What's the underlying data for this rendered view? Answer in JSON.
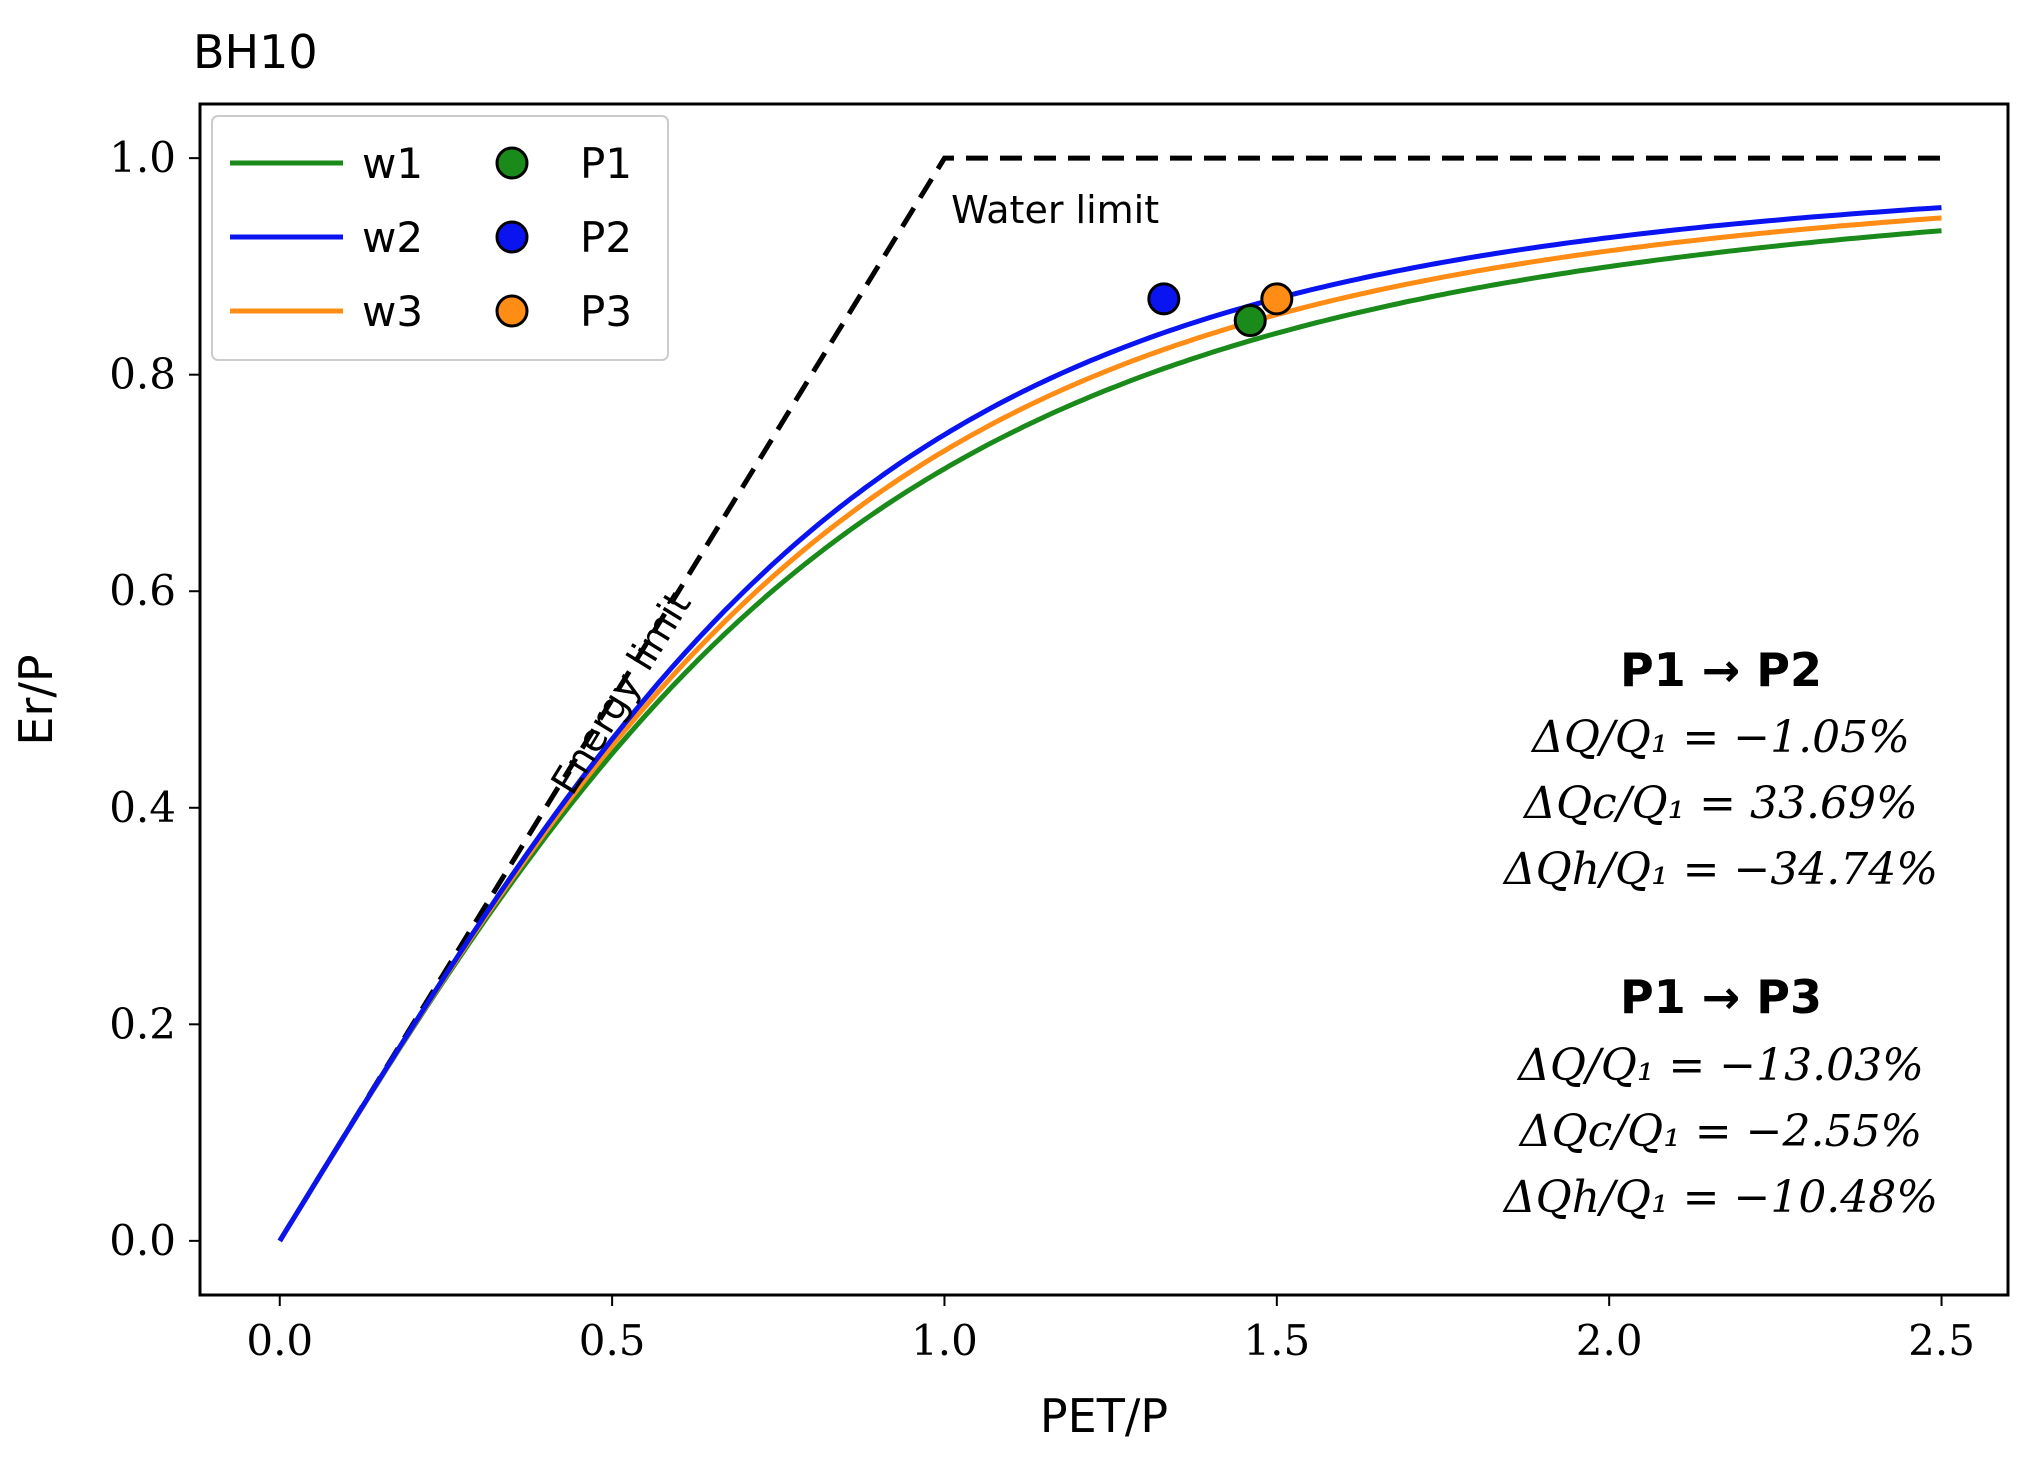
{
  "chart_data": {
    "type": "line",
    "title": "BH10",
    "xlabel": "PET/P",
    "ylabel": "Er/P",
    "xlim": [
      -0.12,
      2.6
    ],
    "ylim": [
      -0.05,
      1.05
    ],
    "xticks": [
      0.0,
      0.5,
      1.0,
      1.5,
      2.0,
      2.5
    ],
    "xtick_labels": [
      "0.0",
      "0.5",
      "1.0",
      "1.5",
      "2.0",
      "2.5"
    ],
    "yticks": [
      0.0,
      0.2,
      0.4,
      0.6,
      0.8,
      1.0
    ],
    "ytick_labels": [
      "0.0",
      "0.2",
      "0.4",
      "0.6",
      "0.8",
      "1.0"
    ],
    "grid": false,
    "legend_position": "top-left",
    "series": [
      {
        "name": "w1",
        "color": "#1a8a1a",
        "w": 2.05
      },
      {
        "name": "w2",
        "color": "#0a14f0",
        "w": 2.35
      },
      {
        "name": "w3",
        "color": "#ff8c14",
        "w": 2.2
      }
    ],
    "points": [
      {
        "name": "P1",
        "color": "#1a8a1a",
        "x": 1.46,
        "y": 0.85
      },
      {
        "name": "P2",
        "color": "#0a14f0",
        "x": 1.33,
        "y": 0.87
      },
      {
        "name": "P3",
        "color": "#ff8c14",
        "x": 1.5,
        "y": 0.87
      }
    ],
    "limits": {
      "energy_label": "Energy limit",
      "water_label": "Water limit",
      "x_end": 2.5
    },
    "annotations": [
      {
        "header": "P1 → P2",
        "lines": [
          "ΔQ/Q₁ = −1.05%",
          "ΔQc/Q₁ = 33.69%",
          "ΔQh/Q₁ = −34.74%"
        ]
      },
      {
        "header": "P1 → P3",
        "lines": [
          "ΔQ/Q₁ = −13.03%",
          "ΔQc/Q₁ = −2.55%",
          "ΔQh/Q₁ = −10.48%"
        ]
      }
    ]
  }
}
